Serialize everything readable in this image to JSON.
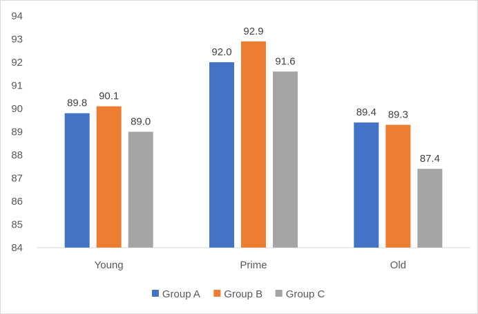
{
  "chart_data": {
    "type": "bar",
    "categories": [
      "Young",
      "Prime",
      "Old"
    ],
    "series": [
      {
        "name": "Group A",
        "color": "#4472c4",
        "values": [
          89.8,
          92.0,
          89.4
        ],
        "labels": [
          "89.8",
          "92.0",
          "89.4"
        ]
      },
      {
        "name": "Group B",
        "color": "#ed7d31",
        "values": [
          90.1,
          92.9,
          89.3
        ],
        "labels": [
          "90.1",
          "92.9",
          "89.3"
        ]
      },
      {
        "name": "Group C",
        "color": "#a5a5a5",
        "values": [
          89.0,
          91.6,
          87.4
        ],
        "labels": [
          "89.0",
          "91.6",
          "87.4"
        ]
      }
    ],
    "ylim": [
      84,
      94
    ],
    "yticks": [
      "84",
      "85",
      "86",
      "87",
      "88",
      "89",
      "90",
      "91",
      "92",
      "93",
      "94"
    ],
    "grid": false,
    "legend_position": "bottom",
    "title": "",
    "xlabel": "",
    "ylabel": ""
  }
}
